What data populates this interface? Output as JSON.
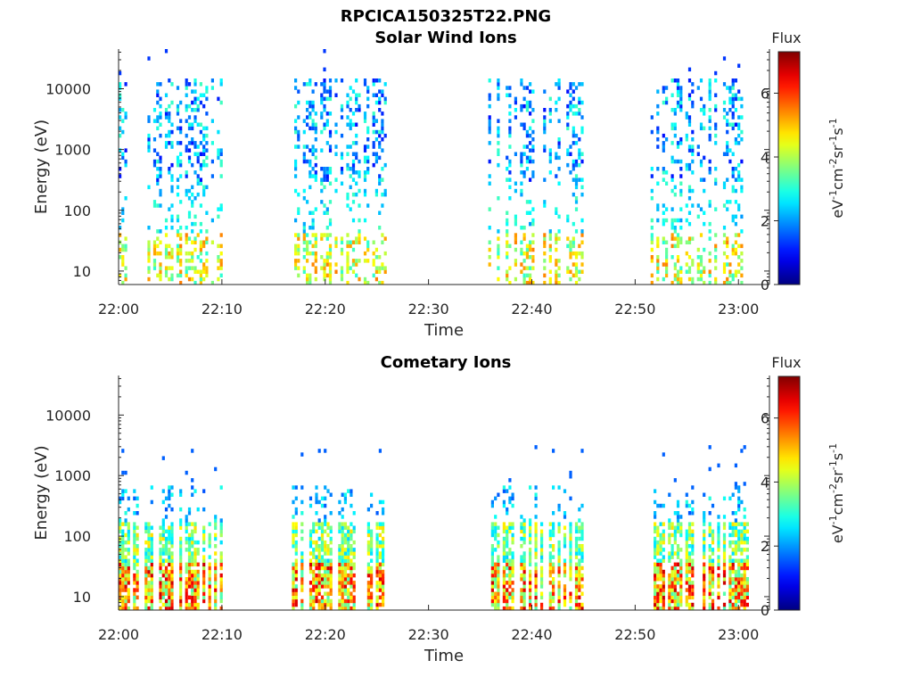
{
  "figure_title": "RPCICA150325T22.PNG",
  "chart_data": [
    {
      "type": "heatmap",
      "title": "Solar Wind Ions",
      "xlabel": "Time",
      "ylabel": "Energy (eV)",
      "x_ticks": [
        "22:00",
        "22:10",
        "22:20",
        "22:30",
        "22:40",
        "22:50",
        "23:00"
      ],
      "x_range": [
        "22:00",
        "23:03"
      ],
      "y_scale": "log",
      "y_ticks": [
        "10",
        "100",
        "1000",
        "10000"
      ],
      "y_range": [
        6,
        45000
      ],
      "colorbar": {
        "title": "Flux",
        "label": "eV-1cm-2sr-1s-1",
        "ticks": [
          "0",
          "2",
          "4",
          "6"
        ],
        "range": [
          0,
          7.3
        ]
      },
      "activity_intervals_min": [
        [
          0,
          10
        ],
        [
          17,
          26
        ],
        [
          35.5,
          45
        ],
        [
          51.5,
          61
        ]
      ]
    },
    {
      "type": "heatmap",
      "title": "Cometary Ions",
      "xlabel": "Time",
      "ylabel": "Energy (eV)",
      "x_ticks": [
        "22:00",
        "22:10",
        "22:20",
        "22:30",
        "22:40",
        "22:50",
        "23:00"
      ],
      "x_range": [
        "22:00",
        "23:03"
      ],
      "y_scale": "log",
      "y_ticks": [
        "10",
        "100",
        "1000",
        "10000"
      ],
      "y_range": [
        6,
        45000
      ],
      "colorbar": {
        "title": "Flux",
        "label": "eV-1cm-2sr-1s-1",
        "ticks": [
          "0",
          "2",
          "4",
          "6"
        ],
        "range": [
          0,
          7.3
        ]
      },
      "activity_intervals_min": [
        [
          0,
          10
        ],
        [
          16.5,
          26
        ],
        [
          35.5,
          45
        ],
        [
          51.5,
          61
        ]
      ]
    }
  ]
}
